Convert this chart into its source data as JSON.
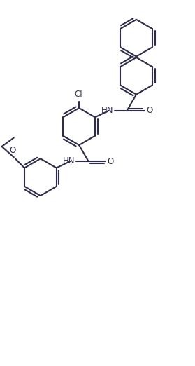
{
  "bg_color": "#ffffff",
  "line_color": "#2d2d4a",
  "line_width": 1.5,
  "figsize": [
    2.79,
    5.22
  ],
  "dpi": 100,
  "xlim": [
    0,
    10
  ],
  "ylim": [
    0,
    18.7
  ]
}
